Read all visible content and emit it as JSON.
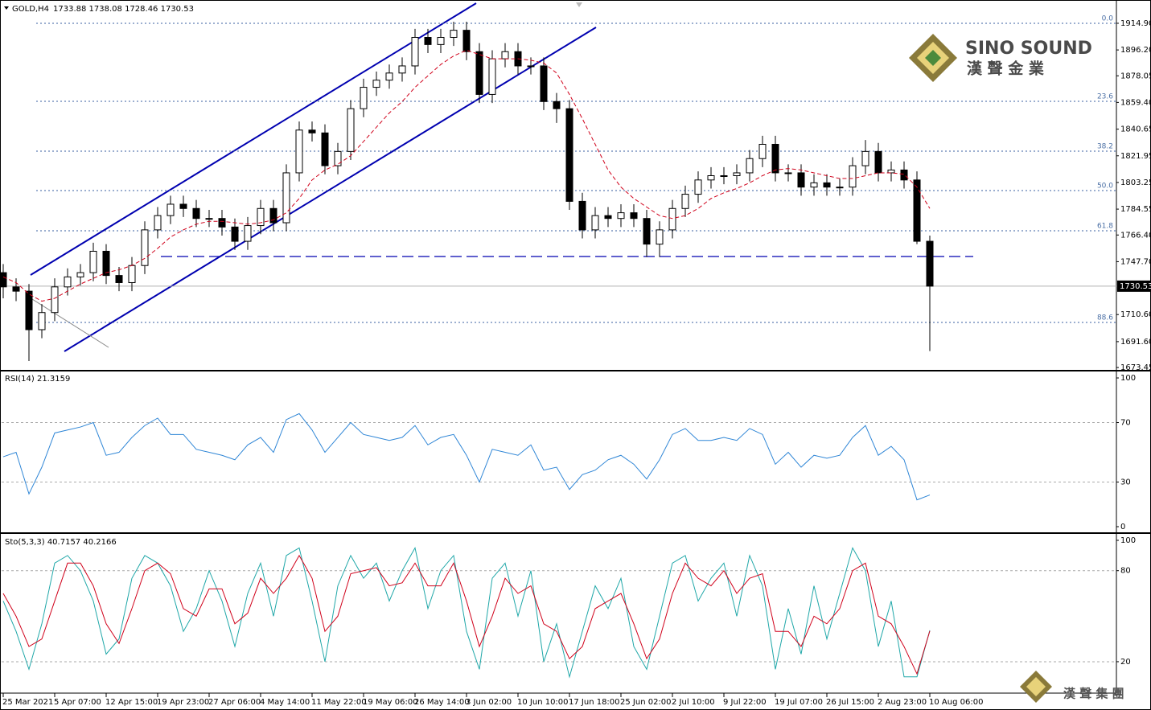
{
  "chart_data": [
    {
      "type": "candlestick",
      "title": "GOLD,H4",
      "subtitle": "1733.88 1738.08 1728.46 1730.53",
      "categories": [
        "25 Mar 2021",
        null,
        null,
        null,
        "5 Apr 07:00",
        null,
        null,
        null,
        "12 Apr 15:00",
        null,
        null,
        null,
        "19 Apr 23:00",
        null,
        null,
        null,
        "27 Apr 06:00",
        null,
        null,
        null,
        "4 May 14:00",
        null,
        null,
        null,
        "11 May 22:00",
        null,
        null,
        null,
        "19 May 06:00",
        null,
        null,
        null,
        "26 May 14:00",
        null,
        null,
        null,
        "3 Jun 02:00",
        null,
        null,
        null,
        "10 Jun 10:00",
        null,
        null,
        null,
        "17 Jun 18:00",
        null,
        null,
        null,
        "25 Jun 02:00",
        null,
        null,
        null,
        "2 Jul 10:00",
        null,
        null,
        null,
        "9 Jul 22:00",
        null,
        null,
        null,
        "19 Jul 07:00",
        null,
        null,
        null,
        "26 Jul 15:00",
        null,
        null,
        null,
        "2 Aug 23:00",
        null,
        null,
        null,
        "10 Aug 06:00"
      ],
      "open": [
        1740,
        1730,
        1727,
        1700,
        1712,
        1730,
        1737,
        1740,
        1755,
        1738,
        1733,
        1745,
        1770,
        1780,
        1788,
        1785,
        1778,
        1778,
        1772,
        1762,
        1773,
        1785,
        1775,
        1810,
        1840,
        1838,
        1815,
        1825,
        1855,
        1870,
        1875,
        1880,
        1885,
        1905,
        1900,
        1905,
        1910,
        1895,
        1865,
        1890,
        1895,
        1885,
        1885,
        1860,
        1855,
        1790,
        1770,
        1780,
        1778,
        1782,
        1778,
        1760,
        1770,
        1785,
        1795,
        1805,
        1808,
        1808,
        1810,
        1820,
        1830,
        1810,
        1810,
        1800,
        1803,
        1800,
        1800,
        1815,
        1825,
        1810,
        1812,
        1805,
        1762
      ],
      "high": [
        1746,
        1736,
        1732,
        1718,
        1736,
        1743,
        1746,
        1761,
        1760,
        1744,
        1751,
        1776,
        1786,
        1794,
        1794,
        1791,
        1784,
        1784,
        1778,
        1779,
        1791,
        1791,
        1816,
        1846,
        1846,
        1844,
        1831,
        1861,
        1876,
        1881,
        1886,
        1891,
        1911,
        1911,
        1911,
        1916,
        1916,
        1901,
        1896,
        1901,
        1901,
        1891,
        1891,
        1866,
        1861,
        1796,
        1786,
        1786,
        1788,
        1788,
        1784,
        1776,
        1791,
        1801,
        1811,
        1814,
        1814,
        1816,
        1826,
        1836,
        1836,
        1816,
        1816,
        1809,
        1809,
        1806,
        1821,
        1833,
        1831,
        1818,
        1818,
        1811,
        1766
      ],
      "low": [
        1722,
        1720,
        1678,
        1694,
        1706,
        1724,
        1731,
        1734,
        1732,
        1727,
        1727,
        1739,
        1764,
        1774,
        1779,
        1772,
        1772,
        1766,
        1756,
        1756,
        1767,
        1769,
        1769,
        1804,
        1832,
        1809,
        1809,
        1819,
        1849,
        1864,
        1869,
        1874,
        1879,
        1894,
        1894,
        1899,
        1889,
        1859,
        1859,
        1884,
        1879,
        1879,
        1854,
        1845,
        1784,
        1764,
        1764,
        1772,
        1772,
        1772,
        1751,
        1751,
        1764,
        1779,
        1789,
        1799,
        1802,
        1802,
        1804,
        1814,
        1804,
        1804,
        1794,
        1794,
        1794,
        1794,
        1794,
        1809,
        1804,
        1804,
        1799,
        1760,
        1685
      ],
      "close": [
        1730,
        1727,
        1700,
        1712,
        1730,
        1737,
        1740,
        1755,
        1738,
        1733,
        1745,
        1770,
        1780,
        1788,
        1785,
        1778,
        1778,
        1772,
        1762,
        1773,
        1785,
        1775,
        1810,
        1840,
        1838,
        1815,
        1825,
        1855,
        1870,
        1875,
        1880,
        1885,
        1905,
        1900,
        1905,
        1910,
        1895,
        1865,
        1890,
        1895,
        1885,
        1885,
        1860,
        1855,
        1790,
        1770,
        1780,
        1778,
        1782,
        1778,
        1760,
        1770,
        1785,
        1795,
        1805,
        1808,
        1808,
        1810,
        1820,
        1830,
        1810,
        1810,
        1800,
        1803,
        1800,
        1800,
        1815,
        1825,
        1810,
        1812,
        1805,
        1762,
        1730.53
      ],
      "ma": {
        "color": "#d0021b",
        "values": [
          1737,
          1733,
          1725,
          1720,
          1722,
          1727,
          1732,
          1736,
          1740,
          1742,
          1745,
          1750,
          1757,
          1765,
          1770,
          1774,
          1776,
          1776,
          1775,
          1774,
          1775,
          1777,
          1782,
          1792,
          1805,
          1812,
          1816,
          1822,
          1832,
          1842,
          1852,
          1860,
          1870,
          1878,
          1886,
          1892,
          1896,
          1893,
          1890,
          1890,
          1890,
          1889,
          1887,
          1880,
          1865,
          1848,
          1830,
          1812,
          1800,
          1792,
          1786,
          1780,
          1778,
          1780,
          1785,
          1792,
          1796,
          1799,
          1803,
          1808,
          1812,
          1813,
          1812,
          1810,
          1808,
          1806,
          1806,
          1808,
          1810,
          1810,
          1809,
          1800,
          1785
        ]
      },
      "last_price": 1730.53,
      "hlines": [
        1751.3
      ],
      "fib_levels": [
        {
          "value": 1914.9,
          "label": "0.0"
        },
        {
          "value": 1860.2,
          "label": "23.6"
        },
        {
          "value": 1825.2,
          "label": "38.2"
        },
        {
          "value": 1797.6,
          "label": "50.0"
        },
        {
          "value": 1769.4,
          "label": "61.8"
        },
        {
          "value": 1705.1,
          "label": "88.6"
        }
      ],
      "ylim": [
        1671.8,
        1930.1
      ],
      "yticks": [
        {
          "value": 1914.9,
          "label": "1914.90"
        },
        {
          "value": 1896.2,
          "label": "1896.20"
        },
        {
          "value": 1878.05,
          "label": "1878.05"
        },
        {
          "value": 1859.4,
          "label": "1859.40"
        },
        {
          "value": 1840.65,
          "label": "1840.65"
        },
        {
          "value": 1821.95,
          "label": "1821.95"
        },
        {
          "value": 1803.25,
          "label": "1803.25"
        },
        {
          "value": 1784.55,
          "label": "1784.55"
        },
        {
          "value": 1766.4,
          "label": "1766.40"
        },
        {
          "value": 1747.7,
          "label": "1747.70"
        },
        {
          "value": 1710.6,
          "label": "1710.60"
        },
        {
          "value": 1691.6,
          "label": "1691.60"
        },
        {
          "value": 1673.45,
          "label": "1673.45"
        }
      ]
    },
    {
      "type": "line",
      "title": "RSI(14) 21.3159",
      "color": "#2f86d6",
      "values": [
        47,
        50,
        22,
        40,
        63,
        65,
        67,
        70,
        48,
        50,
        60,
        68,
        73,
        62,
        62,
        52,
        50,
        48,
        45,
        55,
        60,
        50,
        72,
        76,
        65,
        50,
        60,
        70,
        62,
        60,
        58,
        60,
        68,
        55,
        60,
        62,
        48,
        30,
        52,
        50,
        48,
        55,
        38,
        40,
        25,
        35,
        38,
        45,
        48,
        42,
        32,
        45,
        62,
        66,
        58,
        58,
        60,
        58,
        66,
        62,
        42,
        50,
        40,
        48,
        46,
        48,
        60,
        68,
        48,
        54,
        45,
        18,
        21.3159
      ],
      "ylim": [
        -2.7,
        103.8
      ],
      "yticks": [
        0,
        30,
        70,
        100
      ],
      "levels": [
        70,
        30
      ]
    },
    {
      "type": "line",
      "title": "Sto(5,3,3) 40.7157 40.2166",
      "series": [
        {
          "color": "#1fa7a8",
          "values": [
            60,
            40,
            15,
            45,
            85,
            90,
            80,
            60,
            25,
            35,
            75,
            90,
            85,
            70,
            40,
            55,
            80,
            60,
            30,
            65,
            85,
            50,
            90,
            95,
            60,
            20,
            70,
            90,
            75,
            85,
            60,
            80,
            95,
            55,
            80,
            90,
            40,
            15,
            75,
            85,
            50,
            80,
            20,
            45,
            10,
            40,
            70,
            55,
            75,
            30,
            15,
            50,
            85,
            90,
            60,
            75,
            85,
            50,
            90,
            70,
            15,
            55,
            25,
            70,
            35,
            65,
            95,
            80,
            30,
            60,
            10,
            10,
            40.7157
          ]
        },
        {
          "color": "#d0021b",
          "values": [
            65,
            50,
            30,
            35,
            60,
            85,
            85,
            70,
            45,
            32,
            55,
            80,
            85,
            78,
            55,
            50,
            68,
            68,
            45,
            52,
            75,
            65,
            75,
            90,
            75,
            40,
            50,
            78,
            80,
            82,
            70,
            72,
            85,
            70,
            70,
            85,
            60,
            30,
            50,
            75,
            65,
            70,
            45,
            40,
            22,
            30,
            55,
            60,
            65,
            45,
            22,
            35,
            65,
            85,
            75,
            70,
            80,
            65,
            75,
            78,
            40,
            40,
            30,
            50,
            45,
            55,
            80,
            85,
            50,
            45,
            30,
            12,
            40.2166
          ]
        }
      ],
      "ylim": [
        -0.7,
        103.7
      ],
      "yticks": [
        20,
        80,
        100
      ],
      "levels": [
        80,
        20
      ]
    }
  ],
  "logo": {
    "name": "SINO SOUND",
    "chinese": "漢 聲 金 業"
  },
  "watermark": "漢 聲 集 團"
}
